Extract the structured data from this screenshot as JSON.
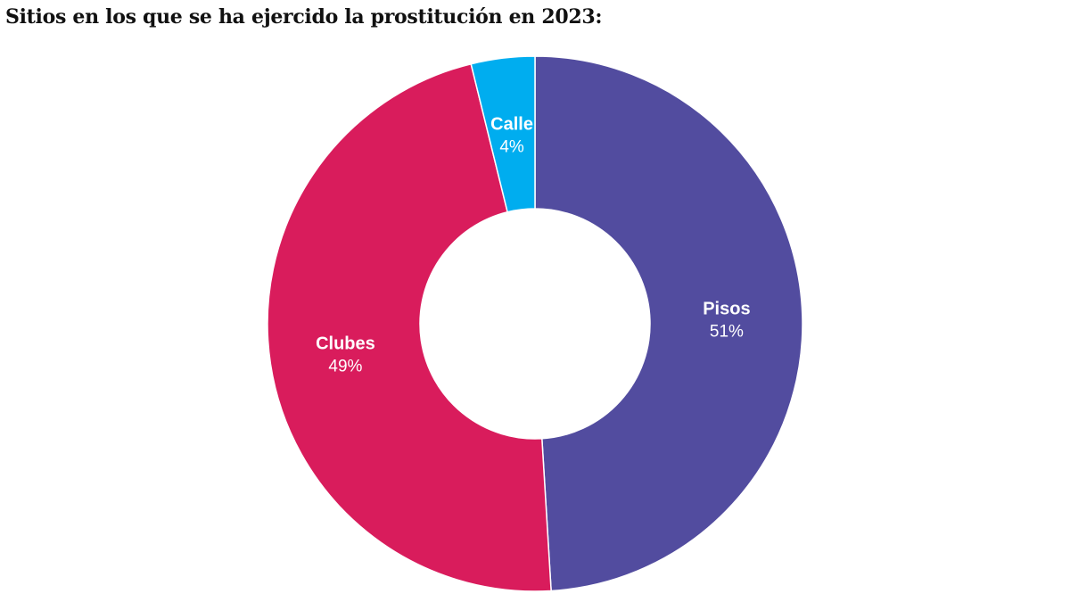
{
  "chart_data": {
    "type": "pie",
    "donut": true,
    "title": "Sitios en los que se ha ejercido la prostitución en 2023:",
    "slices": [
      {
        "label": "Pisos",
        "value": 51,
        "value_label": "51%",
        "color": "#524c9f"
      },
      {
        "label": "Clubes",
        "value": 49,
        "value_label": "49%",
        "color": "#d91c5c"
      },
      {
        "label": "Calle",
        "value": 4,
        "value_label": "4%",
        "color": "#00adef"
      }
    ]
  }
}
